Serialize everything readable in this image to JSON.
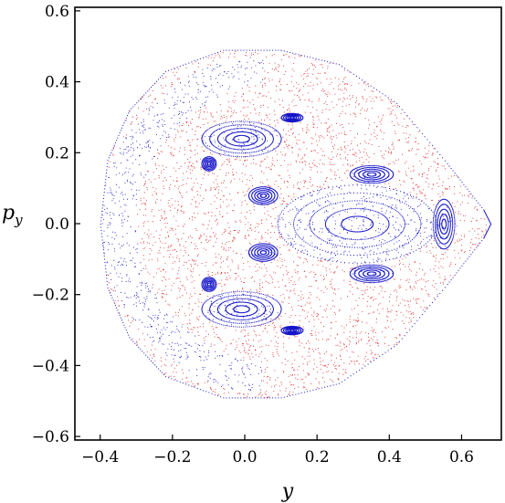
{
  "chart_data": {
    "type": "scatter",
    "title": "",
    "xlabel": "y",
    "ylabel": "p",
    "ylabel_subscript": "y",
    "xlim": [
      -0.47,
      0.71
    ],
    "ylim": [
      -0.61,
      0.61
    ],
    "x_ticks": [
      -0.4,
      -0.2,
      0.0,
      0.2,
      0.4,
      0.6
    ],
    "x_tick_labels": [
      "−0.4",
      "−0.2",
      "0.0",
      "0.2",
      "0.4",
      "0.6"
    ],
    "y_ticks": [
      -0.6,
      -0.4,
      -0.2,
      0.0,
      0.2,
      0.4,
      0.6
    ],
    "y_tick_labels": [
      "−0.6",
      "−0.4",
      "−0.2",
      "0.0",
      "0.2",
      "0.4",
      "0.6"
    ],
    "grid": false,
    "legend": "none",
    "series": [
      {
        "color": "#e01e1e",
        "description_points": "chaotic sea filling energy boundary",
        "boundary_samples": [
          [
            -0.4,
            0.0
          ],
          [
            -0.38,
            0.18
          ],
          [
            -0.32,
            0.32
          ],
          [
            -0.22,
            0.43
          ],
          [
            -0.06,
            0.49
          ],
          [
            0.1,
            0.49
          ],
          [
            0.26,
            0.45
          ],
          [
            0.42,
            0.34
          ],
          [
            0.56,
            0.17
          ],
          [
            0.66,
            0.04
          ],
          [
            0.68,
            0.0
          ],
          [
            0.66,
            -0.04
          ],
          [
            0.56,
            -0.17
          ],
          [
            0.42,
            -0.34
          ],
          [
            0.26,
            -0.45
          ],
          [
            0.1,
            -0.49
          ],
          [
            -0.06,
            -0.49
          ],
          [
            -0.22,
            -0.43
          ],
          [
            -0.32,
            -0.32
          ],
          [
            -0.38,
            -0.18
          ]
        ]
      },
      {
        "color": "#1414c8",
        "description_points": "regular islands (tori)",
        "islands": [
          {
            "center": [
              0.31,
              0.0
            ],
            "rx": 0.22,
            "ry": 0.11
          },
          {
            "center": [
              -0.01,
              0.24
            ],
            "rx": 0.11,
            "ry": 0.05
          },
          {
            "center": [
              -0.01,
              -0.24
            ],
            "rx": 0.11,
            "ry": 0.05
          },
          {
            "center": [
              0.35,
              0.14
            ],
            "rx": 0.06,
            "ry": 0.025
          },
          {
            "center": [
              0.35,
              -0.14
            ],
            "rx": 0.06,
            "ry": 0.025
          },
          {
            "center": [
              0.05,
              0.08
            ],
            "rx": 0.04,
            "ry": 0.025
          },
          {
            "center": [
              0.05,
              -0.08
            ],
            "rx": 0.04,
            "ry": 0.025
          },
          {
            "center": [
              0.55,
              0.0
            ],
            "rx": 0.03,
            "ry": 0.07
          },
          {
            "center": [
              -0.1,
              0.17
            ],
            "rx": 0.02,
            "ry": 0.02
          },
          {
            "center": [
              -0.1,
              -0.17
            ],
            "rx": 0.02,
            "ry": 0.02
          },
          {
            "center": [
              0.13,
              0.3
            ],
            "rx": 0.03,
            "ry": 0.012
          },
          {
            "center": [
              0.13,
              -0.3
            ],
            "rx": 0.03,
            "ry": 0.012
          }
        ],
        "outer_band": "crescent along left boundary from p_y=-0.45 to 0.45"
      }
    ]
  }
}
